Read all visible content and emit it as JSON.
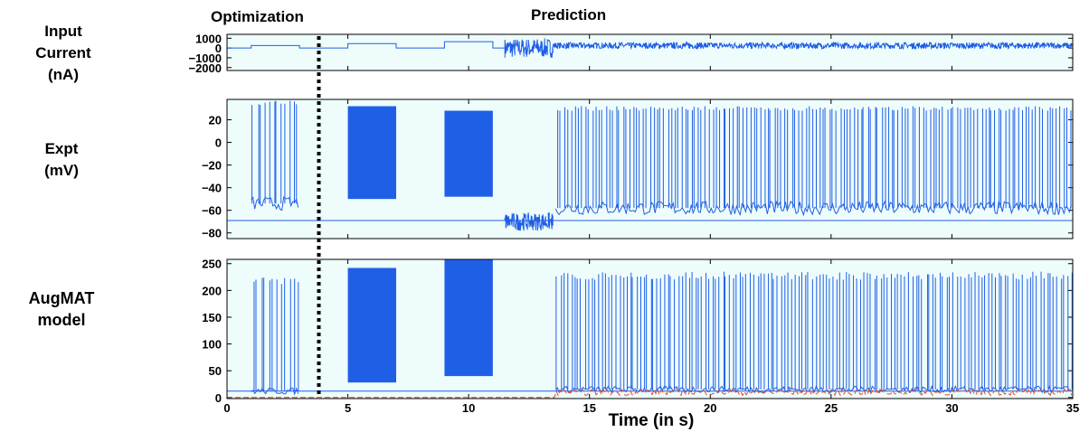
{
  "headers": {
    "optimization": "Optimization",
    "prediction": "Prediction"
  },
  "colors": {
    "trace": "#1f5fe6",
    "model_reference": "#e04a2a",
    "panel_background": "#eefcfc",
    "divider": "#000000"
  },
  "xaxis": {
    "label": "Time (in s)",
    "range": [
      0,
      35
    ],
    "ticks": [
      0,
      5,
      10,
      15,
      20,
      25,
      30,
      35
    ]
  },
  "divider_time_s": 3.8,
  "chart_data": [
    {
      "type": "line",
      "row_label": [
        "Input",
        "Current",
        "(nA)"
      ],
      "x_range": [
        0,
        35
      ],
      "ylim": [
        -2300,
        1400
      ],
      "yticks": [
        1000,
        0,
        -1000,
        -2000
      ],
      "ytick_labels": [
        "1000",
        "0",
        "−1000",
        "−2000"
      ],
      "protocol_steps": [
        {
          "t0": 0,
          "t1": 1,
          "value": 0
        },
        {
          "t0": 1,
          "t1": 3,
          "value": 250
        },
        {
          "t0": 3,
          "t1": 5,
          "value": 0
        },
        {
          "t0": 5,
          "t1": 7,
          "value": 450
        },
        {
          "t0": 7,
          "t1": 9,
          "value": 0
        },
        {
          "t0": 9,
          "t1": 11,
          "value": 650
        },
        {
          "t0": 11,
          "t1": 11.5,
          "value": 0
        }
      ],
      "noise_segments": [
        {
          "t0": 11.5,
          "t1": 13.5,
          "mean": 0,
          "amplitude": 1000
        },
        {
          "t0": 13.5,
          "t1": 35,
          "mean": 250,
          "amplitude": 320
        }
      ]
    },
    {
      "type": "line",
      "row_label": [
        "Expt",
        "(mV)"
      ],
      "x_range": [
        0,
        35
      ],
      "ylim": [
        -85,
        38
      ],
      "yticks": [
        20,
        0,
        -20,
        -40,
        -60,
        -80
      ],
      "ytick_labels": [
        "20",
        "0",
        "−20",
        "−40",
        "−60",
        "−80"
      ],
      "resting_potential": -69,
      "sparse_spike_bursts": [
        {
          "t0": 1.0,
          "t1": 3.0,
          "count": 12,
          "baseline": -54,
          "peak": 37
        },
        {
          "t0": 13.6,
          "t1": 35,
          "count": 150,
          "baseline": -58,
          "peak": 32
        }
      ],
      "dense_firing_blocks": [
        {
          "t0": 5.0,
          "t1": 7.0,
          "top": 32,
          "bottom": -50
        },
        {
          "t0": 9.0,
          "t1": 11.0,
          "top": 28,
          "bottom": -48
        }
      ],
      "noisy_rest_segment": {
        "t0": 11.5,
        "t1": 13.5,
        "mean": -70,
        "amplitude": 8
      }
    },
    {
      "type": "line",
      "row_label": [
        "AugMAT",
        "model"
      ],
      "x_range": [
        0,
        35
      ],
      "ylim": [
        -2,
        258
      ],
      "yticks": [
        250,
        200,
        150,
        100,
        50,
        0
      ],
      "ytick_labels": [
        "250",
        "200",
        "150",
        "100",
        "50",
        "0"
      ],
      "threshold_baseline": 12,
      "sparse_spike_bursts": [
        {
          "t0": 1.0,
          "t1": 3.0,
          "count": 12,
          "baseline": 12,
          "peak": 225
        },
        {
          "t0": 13.6,
          "t1": 35,
          "count": 150,
          "baseline": 15,
          "peak": 235
        }
      ],
      "dense_firing_blocks": [
        {
          "t0": 5.0,
          "t1": 7.0,
          "top": 242,
          "bottom": 28
        },
        {
          "t0": 9.0,
          "t1": 11.0,
          "top": 258,
          "bottom": 40
        }
      ],
      "reference_trace": {
        "color": "#e04a2a",
        "t0": 0,
        "t1": 35,
        "value": 0
      }
    }
  ]
}
